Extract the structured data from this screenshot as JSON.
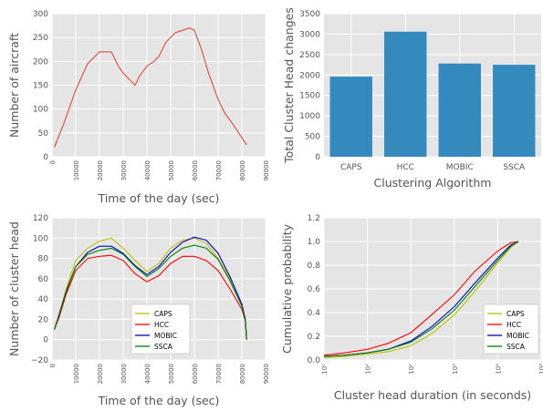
{
  "chart_data": [
    {
      "id": "aircraft",
      "type": "line",
      "xlabel": "Time of the day (sec)",
      "ylabel": "Number of aircraft",
      "xlim": [
        0,
        90000
      ],
      "ylim": [
        0,
        300
      ],
      "xticks": [
        "0",
        "10000",
        "20000",
        "30000",
        "40000",
        "50000",
        "60000",
        "70000",
        "80000",
        "90000"
      ],
      "yticks": [
        "0",
        "50",
        "100",
        "150",
        "200",
        "250",
        "300"
      ],
      "grid": true,
      "series": [
        {
          "color": "#e24a33",
          "x": [
            1000,
            5000,
            10000,
            15000,
            20000,
            25000,
            28000,
            30000,
            33000,
            35000,
            37000,
            40000,
            43000,
            45000,
            48000,
            52000,
            55000,
            58000,
            60000,
            63000,
            66000,
            70000,
            73000,
            76000,
            80000,
            82000
          ],
          "y": [
            20,
            70,
            140,
            195,
            220,
            220,
            190,
            175,
            160,
            150,
            170,
            190,
            200,
            210,
            240,
            260,
            265,
            270,
            265,
            225,
            175,
            120,
            90,
            70,
            40,
            25
          ]
        }
      ]
    },
    {
      "id": "head-changes",
      "type": "bar",
      "xlabel": "Clustering Algorithm",
      "ylabel": "Total Cluster Head changes",
      "ylim": [
        0,
        3500
      ],
      "yticks": [
        "0",
        "500",
        "1000",
        "1500",
        "2000",
        "2500",
        "3000",
        "3500"
      ],
      "categories": [
        "CAPS",
        "HCC",
        "MOBIC",
        "SSCA"
      ],
      "values": [
        1960,
        3060,
        2280,
        2250
      ],
      "color": "#348abd",
      "grid": true
    },
    {
      "id": "cluster-heads",
      "type": "line",
      "xlabel": "Time of the day (sec)",
      "ylabel": "Number of cluster head",
      "xlim": [
        0,
        90000
      ],
      "ylim": [
        -20,
        120
      ],
      "xticks": [
        "0",
        "10000",
        "20000",
        "30000",
        "40000",
        "50000",
        "60000",
        "70000",
        "80000",
        "90000"
      ],
      "yticks": [
        "−20",
        "0",
        "20",
        "40",
        "60",
        "80",
        "100",
        "120"
      ],
      "grid": true,
      "legend_position": "lower-center",
      "series": [
        {
          "name": "CAPS",
          "color": "#bfbf00",
          "x": [
            1000,
            3000,
            6000,
            10000,
            15000,
            20000,
            25000,
            30000,
            35000,
            40000,
            45000,
            50000,
            55000,
            60000,
            65000,
            70000,
            75000,
            80000,
            81500,
            82000
          ],
          "y": [
            10,
            25,
            50,
            78,
            90,
            97,
            100,
            90,
            78,
            67,
            75,
            90,
            98,
            100,
            95,
            80,
            60,
            35,
            20,
            0
          ]
        },
        {
          "name": "HCC",
          "color": "#ff0000",
          "x": [
            1000,
            3000,
            6000,
            10000,
            15000,
            20000,
            25000,
            30000,
            35000,
            40000,
            45000,
            50000,
            55000,
            60000,
            65000,
            70000,
            75000,
            80000,
            81500,
            82000
          ],
          "y": [
            10,
            22,
            45,
            68,
            80,
            82,
            83,
            78,
            65,
            57,
            63,
            75,
            82,
            82,
            78,
            68,
            50,
            30,
            18,
            0
          ]
        },
        {
          "name": "MOBIC",
          "color": "#0000cc",
          "x": [
            1000,
            3000,
            6000,
            10000,
            15000,
            20000,
            25000,
            30000,
            35000,
            40000,
            45000,
            50000,
            55000,
            60000,
            65000,
            70000,
            75000,
            80000,
            81500,
            82000
          ],
          "y": [
            10,
            25,
            48,
            72,
            86,
            92,
            92,
            85,
            73,
            64,
            72,
            86,
            96,
            101,
            98,
            85,
            62,
            35,
            20,
            0
          ]
        },
        {
          "name": "SSCA",
          "color": "#008000",
          "x": [
            1000,
            3000,
            6000,
            10000,
            15000,
            20000,
            25000,
            30000,
            35000,
            40000,
            45000,
            50000,
            55000,
            60000,
            65000,
            70000,
            75000,
            80000,
            81500,
            82000
          ],
          "y": [
            10,
            24,
            47,
            72,
            84,
            88,
            90,
            84,
            72,
            62,
            70,
            82,
            90,
            93,
            90,
            79,
            58,
            33,
            19,
            0
          ]
        }
      ]
    },
    {
      "id": "head-duration-cdf",
      "type": "line",
      "xlabel": "Cluster head duration (in seconds)",
      "ylabel": "Cumulative probability",
      "x_scale": "log",
      "xlim": [
        1,
        100000
      ],
      "ylim": [
        0,
        1.2
      ],
      "xticks": [
        "10⁰",
        "10¹",
        "10²",
        "10³",
        "10⁴",
        "10⁵"
      ],
      "yticks": [
        "0.0",
        "0.2",
        "0.4",
        "0.6",
        "0.8",
        "1.0",
        "1.2"
      ],
      "grid": true,
      "legend_position": "lower-right",
      "series": [
        {
          "name": "CAPS",
          "color": "#bfbf00",
          "x": [
            1,
            3,
            10,
            30,
            100,
            300,
            1000,
            3000,
            10000,
            20000,
            30000
          ],
          "y": [
            0.02,
            0.03,
            0.05,
            0.07,
            0.12,
            0.22,
            0.38,
            0.58,
            0.82,
            0.95,
            1.0
          ]
        },
        {
          "name": "HCC",
          "color": "#ff0000",
          "x": [
            1,
            3,
            10,
            30,
            100,
            300,
            1000,
            3000,
            10000,
            20000,
            30000
          ],
          "y": [
            0.04,
            0.06,
            0.09,
            0.14,
            0.23,
            0.38,
            0.55,
            0.75,
            0.92,
            0.99,
            1.0
          ]
        },
        {
          "name": "MOBIC",
          "color": "#0000cc",
          "x": [
            1,
            3,
            10,
            30,
            100,
            300,
            1000,
            3000,
            10000,
            20000,
            30000
          ],
          "y": [
            0.03,
            0.04,
            0.06,
            0.09,
            0.16,
            0.28,
            0.45,
            0.65,
            0.86,
            0.97,
            1.0
          ]
        },
        {
          "name": "SSCA",
          "color": "#008000",
          "x": [
            1,
            3,
            10,
            30,
            100,
            300,
            1000,
            3000,
            10000,
            20000,
            30000
          ],
          "y": [
            0.03,
            0.04,
            0.06,
            0.09,
            0.15,
            0.26,
            0.42,
            0.62,
            0.84,
            0.96,
            1.0
          ]
        }
      ]
    }
  ]
}
